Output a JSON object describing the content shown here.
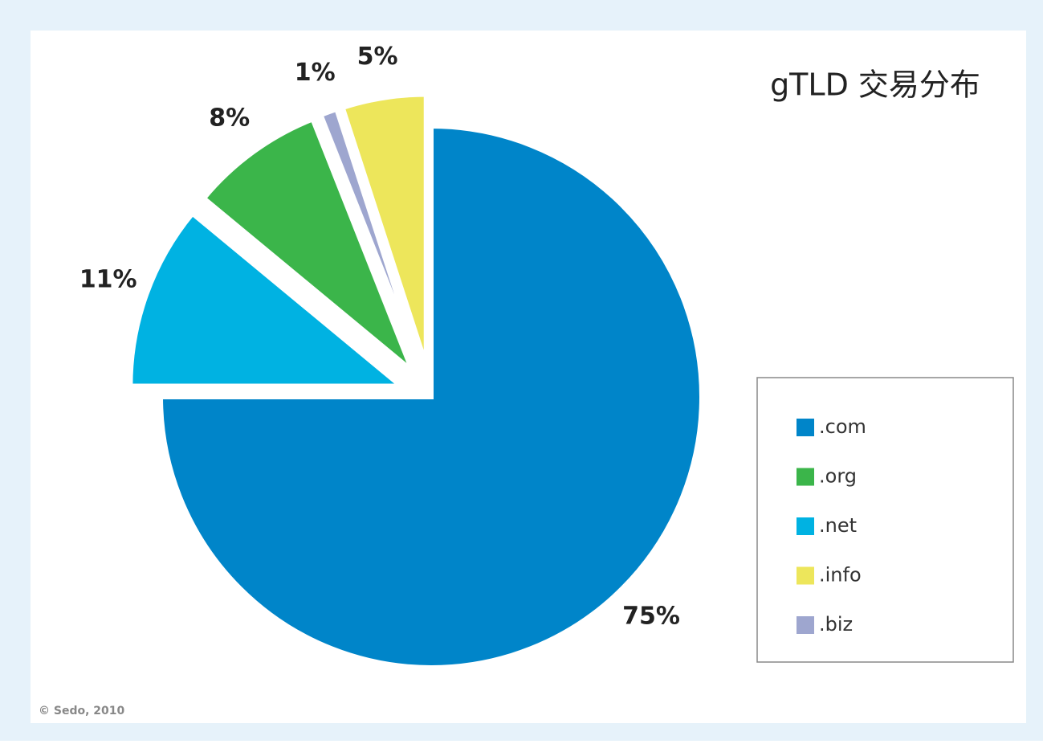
{
  "chart_data": {
    "type": "pie",
    "title": "gTLD 交易分布",
    "categories": [
      ".com",
      ".net",
      ".org",
      ".biz",
      ".info"
    ],
    "values": [
      75,
      11,
      8,
      1,
      5
    ],
    "value_labels": [
      "75%",
      "11%",
      "8%",
      "1%",
      "5%"
    ],
    "colors": [
      "#0085c9",
      "#00b2e2",
      "#3bb54a",
      "#9ea6cf",
      "#ede65b"
    ],
    "source": "© Sedo, 2010"
  }
}
